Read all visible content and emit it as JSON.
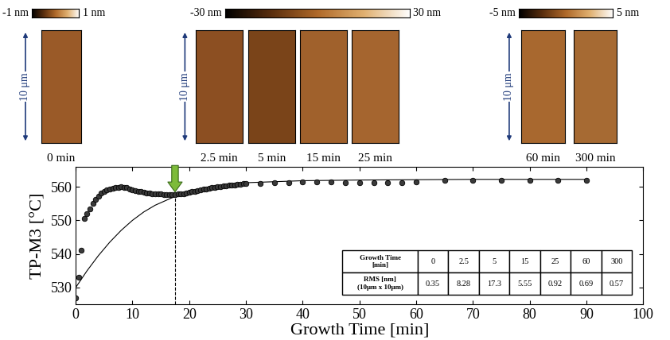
{
  "chart_data": {
    "type": "scatter",
    "xlabel": "Growth Time [min]",
    "ylabel": "TP-M3 [°C]",
    "xlim": [
      0,
      100
    ],
    "xticks": [
      0,
      10,
      20,
      30,
      40,
      50,
      60,
      70,
      80,
      90,
      100
    ],
    "ylim": [
      525,
      566
    ],
    "yticks": [
      530,
      540,
      550,
      560
    ],
    "grid": false,
    "series": [
      {
        "type": "scatter",
        "marker": "circle",
        "color": "#3a3a3a",
        "x": [
          0,
          0.5,
          1,
          1.5,
          2,
          2.5,
          3,
          3.5,
          4,
          4.5,
          5,
          5.5,
          6,
          6.5,
          7,
          7.5,
          8,
          8.5,
          9,
          9.5,
          10,
          10.5,
          11,
          11.5,
          12,
          12.5,
          13,
          13.5,
          14,
          14.5,
          15,
          15.5,
          16,
          16.5,
          17,
          17.5,
          18,
          18.5,
          19,
          19.5,
          20,
          20.5,
          21,
          21.5,
          22,
          22.5,
          23,
          23.5,
          24,
          24.5,
          25,
          25.5,
          26,
          26.5,
          27,
          27.5,
          28,
          28.5,
          29,
          29.5,
          30,
          32.5,
          35,
          37.5,
          40,
          42.5,
          45,
          47.5,
          50,
          52.5,
          55,
          57.5,
          60,
          65,
          70,
          75,
          80,
          85,
          90
        ],
        "values": [
          527,
          533,
          541,
          550.5,
          552,
          553.5,
          555,
          556.3,
          557.3,
          558.1,
          558.7,
          559.1,
          559.4,
          559.6,
          559.8,
          559.9,
          560,
          559.9,
          559.7,
          559.4,
          559.1,
          558.9,
          558.7,
          558.5,
          558.4,
          558.2,
          558.1,
          558,
          557.9,
          557.8,
          557.8,
          557.7,
          557.7,
          557.7,
          557.7,
          557.7,
          557.8,
          557.9,
          558,
          558.1,
          558.3,
          558.5,
          558.7,
          558.8,
          559,
          559.2,
          559.4,
          559.5,
          559.7,
          559.8,
          560,
          560.1,
          560.2,
          560.3,
          560.4,
          560.5,
          560.6,
          560.7,
          560.8,
          560.9,
          561,
          561,
          561.2,
          561.3,
          561.5,
          561.5,
          561.5,
          561.3,
          561.2,
          561.2,
          561.3,
          561.3,
          561.5,
          562,
          562,
          562,
          562,
          562,
          562
        ]
      },
      {
        "type": "line",
        "line_style": "solid",
        "color": "#000000",
        "x": [
          0,
          2,
          4,
          6,
          8,
          10,
          12,
          14,
          16,
          18,
          20,
          22,
          24,
          26,
          28,
          30,
          40,
          50,
          60,
          70,
          80,
          90
        ],
        "values": [
          530,
          535,
          539.5,
          543.5,
          547,
          550,
          552.5,
          554.5,
          556,
          557.5,
          558.5,
          559.3,
          560,
          560.5,
          560.9,
          561.2,
          561.8,
          562,
          562.1,
          562.2,
          562.2,
          562.2
        ]
      }
    ],
    "annotations": [
      {
        "x": 17.5,
        "y": 557.8,
        "color": "#7dbb3a"
      }
    ],
    "table": {
      "row_headers": [
        "Growth Time\n[min]",
        "RMS [nm]\n(10μm x 10μm)"
      ],
      "growth_time": [
        0,
        2.5,
        5,
        15,
        25,
        60,
        300
      ],
      "rms": [
        0.35,
        8.28,
        17.3,
        5.55,
        0.92,
        0.69,
        0.57
      ]
    }
  },
  "afm_groups": [
    {
      "scale_label": "10 μm",
      "colorbar": {
        "range": [
          -1,
          1
        ],
        "ticks": [
          {
            "value": -1,
            "label": "-1 nm"
          },
          {
            "value": 1,
            "label": "1 nm"
          }
        ]
      },
      "images": [
        {
          "label": "0 min",
          "color": "#9a5a28"
        }
      ]
    },
    {
      "scale_label": "10 μm",
      "colorbar": {
        "range": [
          -30,
          30
        ],
        "ticks": [
          {
            "value": -30,
            "label": "-30 nm"
          },
          {
            "value": 30,
            "label": "30 nm"
          }
        ]
      },
      "images": [
        {
          "label": "2.5 min",
          "color": "#8c4f22"
        },
        {
          "label": "5 min",
          "color": "#7a4419"
        },
        {
          "label": "15 min",
          "color": "#a0612c"
        },
        {
          "label": "25 min",
          "color": "#a5652f"
        }
      ]
    },
    {
      "scale_label": "10 μm",
      "colorbar": {
        "range": [
          -5,
          5
        ],
        "ticks": [
          {
            "value": -5,
            "label": "-5 nm"
          },
          {
            "value": 5,
            "label": "5 nm"
          }
        ]
      },
      "images": [
        {
          "label": "60 min",
          "color": "#a8682f"
        },
        {
          "label": "300 min",
          "color": "#a66a33"
        }
      ]
    }
  ]
}
